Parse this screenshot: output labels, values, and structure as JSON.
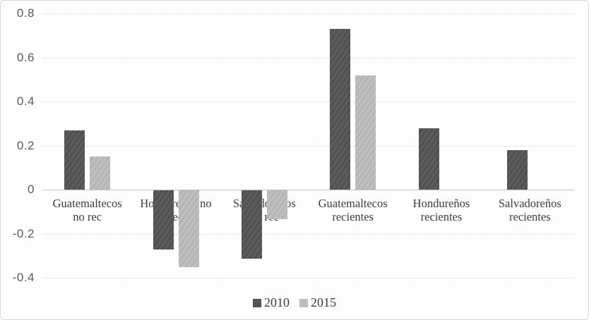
{
  "chart_data": {
    "type": "bar",
    "title": "",
    "xlabel": "",
    "ylabel": "",
    "categories": [
      "Guatemaltecos no rec",
      "Hondureños no rec",
      "Salvadoreños no rec",
      "Guatemaltecos recientes",
      "Hondureños recientes",
      "Salvadoreños recientes"
    ],
    "category_lines": [
      [
        "Guatemaltecos",
        "no rec"
      ],
      [
        "Hondureños no",
        "rec"
      ],
      [
        "Salvadoreños",
        "no rec"
      ],
      [
        "Guatemaltecos",
        "recientes"
      ],
      [
        "Hondureños",
        "recientes"
      ],
      [
        "Salvadoreños",
        "recientes"
      ]
    ],
    "series": [
      {
        "name": "2010",
        "color": "#545454",
        "values": [
          0.27,
          -0.27,
          -0.31,
          0.73,
          0.28,
          0.18
        ]
      },
      {
        "name": "2015",
        "color": "#bdbdbd",
        "values": [
          0.15,
          -0.35,
          -0.13,
          0.52,
          0,
          0
        ]
      }
    ],
    "ylim": [
      -0.4,
      0.8
    ],
    "ytick_step": 0.2,
    "grid": true,
    "legend_position": "bottom"
  },
  "style_colors": {
    "gridline": "#d9d9d9",
    "zero_line": "#c2c2c2",
    "axis_text": "#595959",
    "category_text": "#3c3c3c",
    "border": "#d5d5d5",
    "series_2010": "#545454",
    "series_2015": "#bdbdbd"
  }
}
